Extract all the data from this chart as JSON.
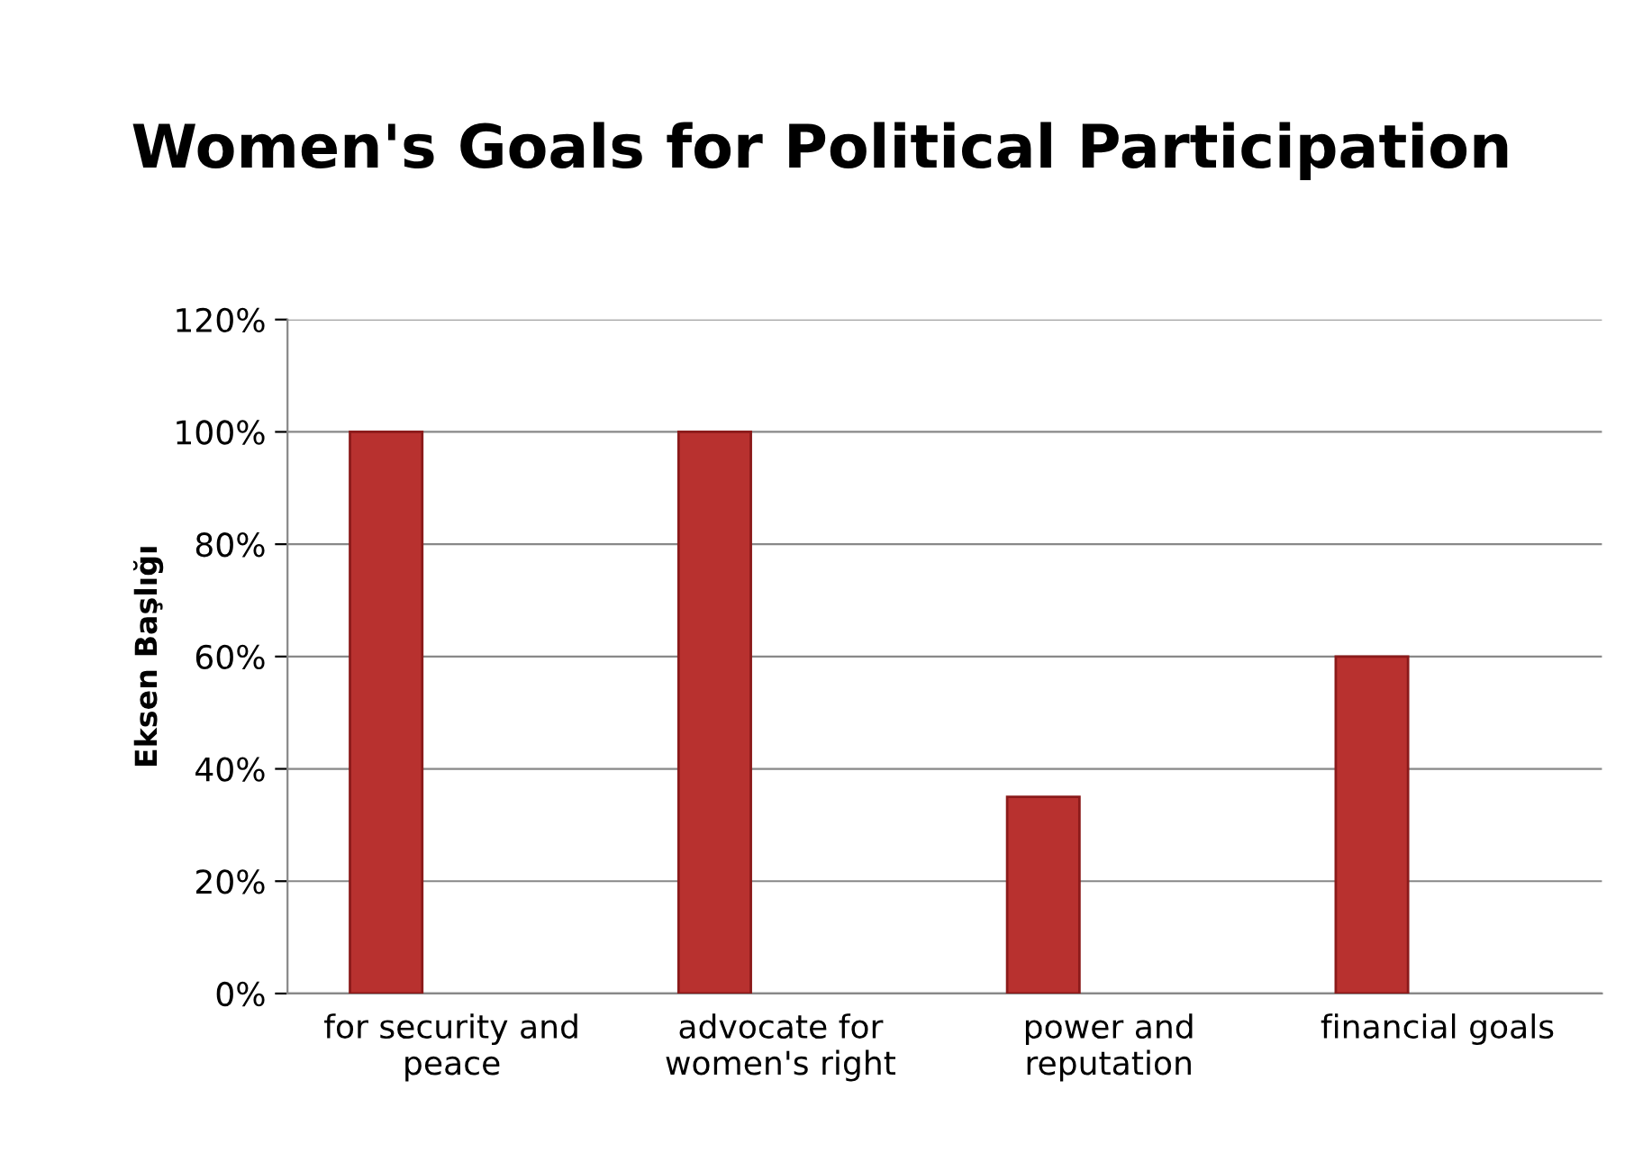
{
  "chart_data": {
    "type": "bar",
    "title": "Women's Goals for Political Participation",
    "ylabel": "Eksen Başlığı",
    "categories": [
      "for security and\npeace",
      "advocate for\nwomen's right",
      "power and\nreputation",
      "financial goals"
    ],
    "values": [
      100,
      100,
      35,
      60
    ],
    "color": "#b8312f",
    "ylim": [
      0,
      120
    ],
    "yticks": [
      {
        "value": 0,
        "label": "0%"
      },
      {
        "value": 20,
        "label": "20%"
      },
      {
        "value": 40,
        "label": "40%"
      },
      {
        "value": 60,
        "label": "60%"
      },
      {
        "value": 80,
        "label": "80%"
      },
      {
        "value": 100,
        "label": "100%"
      },
      {
        "value": 120,
        "label": "120%"
      }
    ],
    "grid": "y",
    "legend": false
  }
}
